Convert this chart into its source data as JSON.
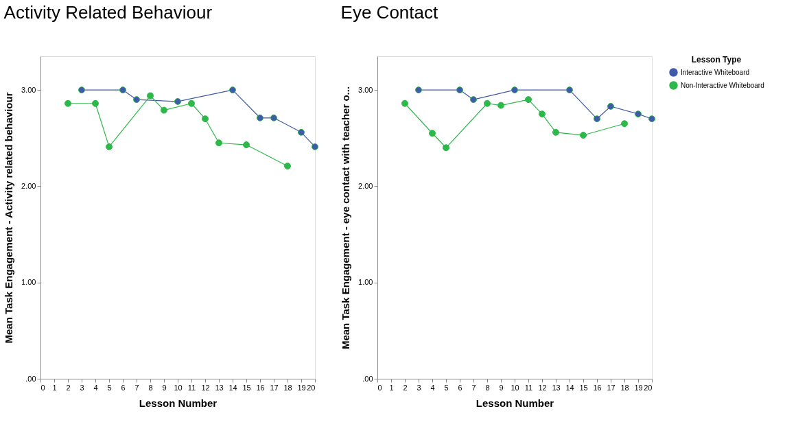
{
  "chart_data": [
    {
      "type": "line",
      "title": "Activity Related Behaviour",
      "xlabel": "Lesson Number",
      "ylabel": "Mean Task Engagement - Activity related behaviour",
      "xlim": [
        0,
        20
      ],
      "xticks": [
        0,
        1,
        2,
        3,
        4,
        5,
        6,
        7,
        8,
        9,
        10,
        11,
        12,
        13,
        14,
        15,
        16,
        17,
        18,
        19,
        20
      ],
      "ylim": [
        0,
        3.35
      ],
      "yticks": [
        {
          "value": 0,
          "label": ".00"
        },
        {
          "value": 1,
          "label": "1.00"
        },
        {
          "value": 2,
          "label": "2.00"
        },
        {
          "value": 3,
          "label": "3.00"
        }
      ],
      "grid": false,
      "legend": "top right",
      "marker": "circle",
      "line_style": "solid",
      "series": [
        {
          "name": "Interactive Whiteboard",
          "color": "#3e5aa8",
          "x": [
            3,
            6,
            7,
            10,
            14,
            16,
            17,
            19,
            20
          ],
          "values": [
            3.0,
            3.0,
            2.9,
            2.88,
            3.0,
            2.71,
            2.71,
            2.56,
            2.41
          ]
        },
        {
          "name": "Non-Interactive Whiteboard",
          "color": "#2db84a",
          "x": [
            2,
            4,
            5,
            8,
            9,
            11,
            12,
            13,
            15,
            18
          ],
          "values": [
            2.86,
            2.86,
            2.41,
            2.94,
            2.79,
            2.86,
            2.7,
            2.45,
            2.43,
            2.21
          ]
        }
      ]
    },
    {
      "type": "line",
      "title": "Eye Contact",
      "xlabel": "Lesson Number",
      "ylabel": "Mean Task Engagement - eye contact with teacher o...",
      "legend_title": "Lesson Type",
      "xlim": [
        0,
        20
      ],
      "xticks": [
        0,
        1,
        2,
        3,
        4,
        5,
        6,
        7,
        8,
        9,
        10,
        11,
        12,
        13,
        14,
        15,
        16,
        17,
        18,
        19,
        20
      ],
      "ylim": [
        0,
        3.35
      ],
      "yticks": [
        {
          "value": 0,
          "label": ".00"
        },
        {
          "value": 1,
          "label": "1.00"
        },
        {
          "value": 2,
          "label": "2.00"
        },
        {
          "value": 3,
          "label": "3.00"
        }
      ],
      "grid": false,
      "legend": "top right",
      "marker": "circle",
      "line_style": "solid",
      "series": [
        {
          "name": "Interactive Whiteboard",
          "color": "#3e5aa8",
          "x": [
            3,
            6,
            7,
            10,
            14,
            16,
            17,
            19,
            20
          ],
          "values": [
            3.0,
            3.0,
            2.9,
            3.0,
            3.0,
            2.7,
            2.83,
            2.75,
            2.7
          ]
        },
        {
          "name": "Non-Interactive Whiteboard",
          "color": "#2db84a",
          "x": [
            2,
            4,
            5,
            8,
            9,
            11,
            12,
            13,
            15,
            18
          ],
          "values": [
            2.86,
            2.55,
            2.4,
            2.86,
            2.84,
            2.9,
            2.75,
            2.56,
            2.53,
            2.65
          ]
        }
      ]
    }
  ]
}
